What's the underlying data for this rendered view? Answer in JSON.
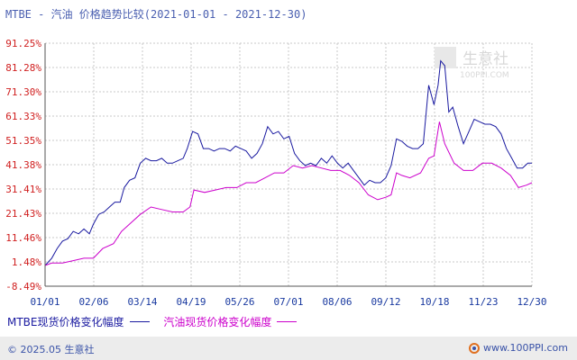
{
  "chart_data": {
    "type": "line",
    "title": "MTBE - 汽油 价格趋势比较(2021-01-01 - 2021-12-30)",
    "x_ticks": [
      "01/01",
      "02/06",
      "03/14",
      "04/19",
      "05/26",
      "07/01",
      "08/06",
      "09/12",
      "10/18",
      "11/23",
      "12/30"
    ],
    "y_ticks": [
      "91.25%",
      "81.28%",
      "71.30%",
      "61.33%",
      "51.35%",
      "41.38%",
      "31.41%",
      "21.43%",
      "11.46%",
      "1.48%",
      "-8.49%"
    ],
    "y_tick_values": [
      91.25,
      81.28,
      71.3,
      61.33,
      51.35,
      41.38,
      31.41,
      21.43,
      11.46,
      1.48,
      -8.49
    ],
    "ylim": [
      -8.49,
      91.25
    ],
    "grid": true,
    "legend": "bottom-left",
    "series": [
      {
        "name": "MTBE现货价格变化幅度",
        "color": "#1a1aa0",
        "points": [
          [
            "2021-01-01",
            0
          ],
          [
            "2021-01-06",
            3
          ],
          [
            "2021-01-10",
            7
          ],
          [
            "2021-01-14",
            10
          ],
          [
            "2021-01-18",
            11
          ],
          [
            "2021-01-22",
            14
          ],
          [
            "2021-01-26",
            13
          ],
          [
            "2021-01-30",
            15
          ],
          [
            "2021-02-03",
            13
          ],
          [
            "2021-02-06",
            17
          ],
          [
            "2021-02-10",
            21
          ],
          [
            "2021-02-14",
            22
          ],
          [
            "2021-02-18",
            24
          ],
          [
            "2021-02-22",
            26
          ],
          [
            "2021-02-26",
            26
          ],
          [
            "2021-03-01",
            32
          ],
          [
            "2021-03-05",
            35
          ],
          [
            "2021-03-09",
            36
          ],
          [
            "2021-03-13",
            42
          ],
          [
            "2021-03-17",
            44
          ],
          [
            "2021-03-21",
            43
          ],
          [
            "2021-03-25",
            43
          ],
          [
            "2021-03-29",
            44
          ],
          [
            "2021-04-02",
            42
          ],
          [
            "2021-04-06",
            42
          ],
          [
            "2021-04-10",
            43
          ],
          [
            "2021-04-14",
            44
          ],
          [
            "2021-04-17",
            48
          ],
          [
            "2021-04-21",
            55
          ],
          [
            "2021-04-25",
            54
          ],
          [
            "2021-04-29",
            48
          ],
          [
            "2021-05-03",
            48
          ],
          [
            "2021-05-07",
            47
          ],
          [
            "2021-05-11",
            48
          ],
          [
            "2021-05-15",
            48
          ],
          [
            "2021-05-19",
            47
          ],
          [
            "2021-05-23",
            49
          ],
          [
            "2021-05-27",
            48
          ],
          [
            "2021-05-31",
            47
          ],
          [
            "2021-06-04",
            44
          ],
          [
            "2021-06-08",
            46
          ],
          [
            "2021-06-12",
            50
          ],
          [
            "2021-06-16",
            57
          ],
          [
            "2021-06-20",
            54
          ],
          [
            "2021-06-24",
            55
          ],
          [
            "2021-06-28",
            52
          ],
          [
            "2021-07-02",
            53
          ],
          [
            "2021-07-06",
            46
          ],
          [
            "2021-07-10",
            43
          ],
          [
            "2021-07-14",
            41
          ],
          [
            "2021-07-18",
            42
          ],
          [
            "2021-07-22",
            41
          ],
          [
            "2021-07-26",
            44
          ],
          [
            "2021-07-30",
            42
          ],
          [
            "2021-08-03",
            45
          ],
          [
            "2021-08-07",
            42
          ],
          [
            "2021-08-11",
            40
          ],
          [
            "2021-08-15",
            42
          ],
          [
            "2021-08-19",
            39
          ],
          [
            "2021-08-23",
            36
          ],
          [
            "2021-08-27",
            33
          ],
          [
            "2021-08-31",
            35
          ],
          [
            "2021-09-04",
            34
          ],
          [
            "2021-09-08",
            34
          ],
          [
            "2021-09-12",
            36
          ],
          [
            "2021-09-16",
            41
          ],
          [
            "2021-09-20",
            52
          ],
          [
            "2021-09-24",
            51
          ],
          [
            "2021-09-28",
            49
          ],
          [
            "2021-10-02",
            48
          ],
          [
            "2021-10-06",
            48
          ],
          [
            "2021-10-10",
            50
          ],
          [
            "2021-10-14",
            74
          ],
          [
            "2021-10-18",
            66
          ],
          [
            "2021-10-21",
            74
          ],
          [
            "2021-10-23",
            84
          ],
          [
            "2021-10-26",
            82
          ],
          [
            "2021-10-29",
            63
          ],
          [
            "2021-11-01",
            65
          ],
          [
            "2021-11-05",
            57
          ],
          [
            "2021-11-09",
            50
          ],
          [
            "2021-11-13",
            55
          ],
          [
            "2021-11-17",
            60
          ],
          [
            "2021-11-21",
            59
          ],
          [
            "2021-11-25",
            58
          ],
          [
            "2021-11-29",
            58
          ],
          [
            "2021-12-03",
            57
          ],
          [
            "2021-12-07",
            54
          ],
          [
            "2021-12-11",
            48
          ],
          [
            "2021-12-15",
            44
          ],
          [
            "2021-12-19",
            40
          ],
          [
            "2021-12-23",
            40
          ],
          [
            "2021-12-27",
            42
          ],
          [
            "2021-12-30",
            42
          ]
        ]
      },
      {
        "name": "汽油现货价格变化幅度",
        "color": "#cc00cc",
        "points": [
          [
            "2021-01-01",
            0
          ],
          [
            "2021-01-06",
            1
          ],
          [
            "2021-01-14",
            1
          ],
          [
            "2021-01-22",
            2
          ],
          [
            "2021-01-30",
            3
          ],
          [
            "2021-02-06",
            3
          ],
          [
            "2021-02-13",
            7
          ],
          [
            "2021-02-21",
            9
          ],
          [
            "2021-02-27",
            14
          ],
          [
            "2021-03-05",
            17
          ],
          [
            "2021-03-13",
            21
          ],
          [
            "2021-03-21",
            24
          ],
          [
            "2021-03-29",
            23
          ],
          [
            "2021-04-06",
            22
          ],
          [
            "2021-04-14",
            22
          ],
          [
            "2021-04-19",
            24
          ],
          [
            "2021-04-22",
            31
          ],
          [
            "2021-04-30",
            30
          ],
          [
            "2021-05-08",
            31
          ],
          [
            "2021-05-16",
            32
          ],
          [
            "2021-05-24",
            32
          ],
          [
            "2021-05-31",
            34
          ],
          [
            "2021-06-07",
            34
          ],
          [
            "2021-06-14",
            36
          ],
          [
            "2021-06-21",
            38
          ],
          [
            "2021-06-28",
            38
          ],
          [
            "2021-07-05",
            41
          ],
          [
            "2021-07-12",
            40
          ],
          [
            "2021-07-19",
            41
          ],
          [
            "2021-07-26",
            40
          ],
          [
            "2021-08-02",
            39
          ],
          [
            "2021-08-09",
            39
          ],
          [
            "2021-08-16",
            37
          ],
          [
            "2021-08-23",
            34
          ],
          [
            "2021-08-30",
            29
          ],
          [
            "2021-09-06",
            27
          ],
          [
            "2021-09-12",
            28
          ],
          [
            "2021-09-16",
            29
          ],
          [
            "2021-09-20",
            38
          ],
          [
            "2021-09-24",
            37
          ],
          [
            "2021-09-30",
            36
          ],
          [
            "2021-10-08",
            38
          ],
          [
            "2021-10-14",
            44
          ],
          [
            "2021-10-18",
            45
          ],
          [
            "2021-10-22",
            59
          ],
          [
            "2021-10-26",
            50
          ],
          [
            "2021-11-02",
            42
          ],
          [
            "2021-11-09",
            39
          ],
          [
            "2021-11-16",
            39
          ],
          [
            "2021-11-23",
            42
          ],
          [
            "2021-11-30",
            42
          ],
          [
            "2021-12-07",
            40
          ],
          [
            "2021-12-14",
            37
          ],
          [
            "2021-12-20",
            32
          ],
          [
            "2021-12-26",
            33
          ],
          [
            "2021-12-30",
            34
          ]
        ]
      }
    ]
  },
  "watermark": {
    "text": "生意社",
    "url": "100PPI.COM"
  },
  "footer": {
    "copyright": "© 2025.05 生意社",
    "url": "www.100PPI.com"
  }
}
